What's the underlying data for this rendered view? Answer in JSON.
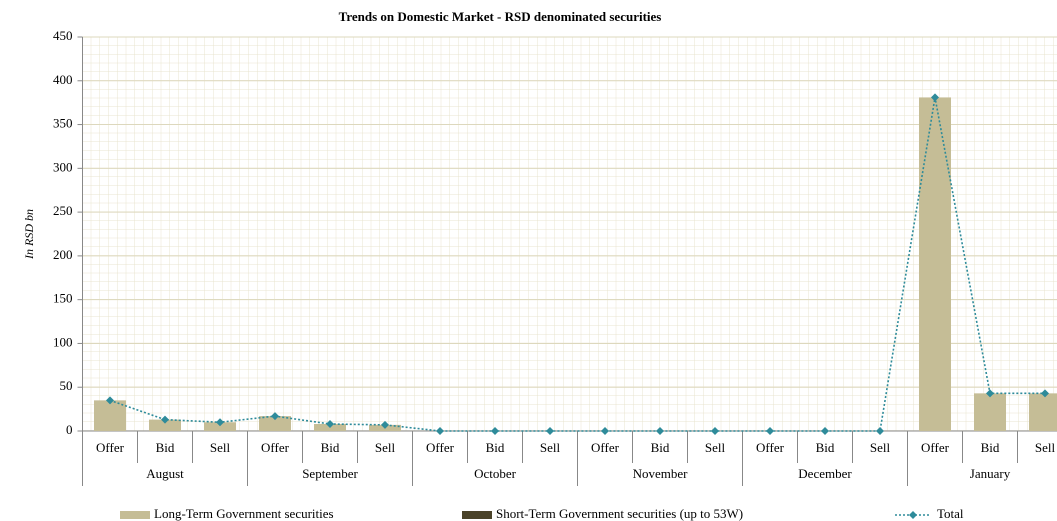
{
  "chart_data": {
    "type": "bar_line",
    "title": "Trends on Domestic Market - RSD denominated securities",
    "y_label": "In RSD bn",
    "categories": [
      "Offer",
      "Bid",
      "Sell",
      "Offer",
      "Bid",
      "Sell",
      "Offer",
      "Bid",
      "Sell",
      "Offer",
      "Bid",
      "Sell",
      "Offer",
      "Bid",
      "Sell",
      "Offer",
      "Bid",
      "Sell"
    ],
    "groups": [
      "August",
      "September",
      "October",
      "November",
      "December",
      "January"
    ],
    "series": [
      {
        "name": "Long-Term Government securities",
        "kind": "bar",
        "color": "#c5bd96",
        "values": [
          35,
          13,
          10,
          17,
          8,
          7,
          0,
          0,
          0,
          0,
          0,
          0,
          0,
          0,
          0,
          381,
          43,
          43
        ]
      },
      {
        "name": "Short-Term Government securities (up to 53W)",
        "kind": "bar",
        "color": "#4a4329",
        "values": [
          0,
          0,
          0,
          0,
          0,
          0,
          0,
          0,
          0,
          0,
          0,
          0,
          0,
          0,
          0,
          0,
          0,
          0
        ]
      },
      {
        "name": "Total",
        "kind": "line",
        "color": "#2e8b9a",
        "values": [
          35,
          13,
          10,
          17,
          8,
          7,
          0,
          0,
          0,
          0,
          0,
          0,
          0,
          0,
          0,
          381,
          43,
          43
        ]
      }
    ],
    "ylim": [
      0,
      450
    ],
    "yticks": [
      0,
      50,
      100,
      150,
      200,
      250,
      300,
      350,
      400,
      450
    ],
    "grid": true,
    "legend": "bottom"
  }
}
